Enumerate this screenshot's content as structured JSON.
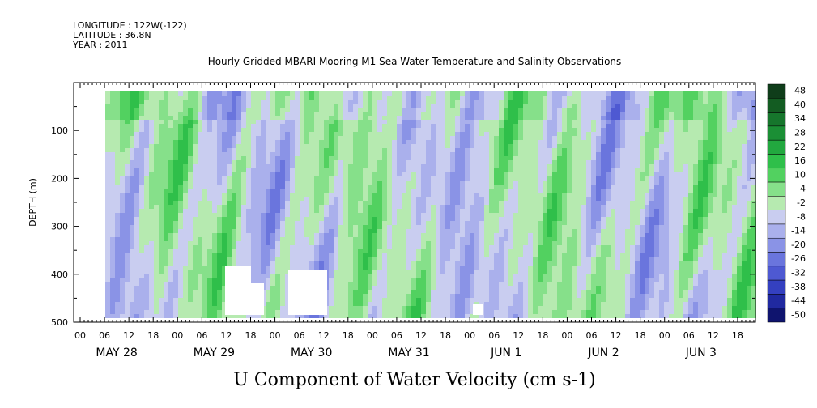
{
  "header": {
    "longitude": "LONGITUDE : 122W(-122)",
    "latitude": "LATITUDE : 36.8N",
    "year": "YEAR : 2011"
  },
  "chart_data": {
    "type": "heatmap",
    "title": "Hourly Gridded MBARI Mooring M1 Sea Water Temperature and Salinity Observations",
    "variable_label": "U Component of Water Velocity (cm s-1)",
    "ylabel": "DEPTH (m)",
    "ylim": [
      500,
      0
    ],
    "y_inverted": true,
    "y_ticks": [
      100,
      200,
      300,
      400,
      500
    ],
    "x_hour_ticks": [
      "00",
      "06",
      "12",
      "18",
      "00",
      "06",
      "12",
      "18",
      "00",
      "06",
      "12",
      "18",
      "00",
      "06",
      "12",
      "18",
      "00",
      "06",
      "12",
      "18",
      "00",
      "06",
      "12",
      "18",
      "00",
      "06",
      "12",
      "18"
    ],
    "x_day_labels": [
      "MAY 28",
      "MAY 29",
      "MAY 30",
      "MAY 31",
      "JUN  1",
      "JUN  2",
      "JUN  3"
    ],
    "colorbar": {
      "levels": [
        48,
        40,
        34,
        28,
        22,
        16,
        10,
        4,
        -2,
        -8,
        -14,
        -20,
        -26,
        -32,
        -38,
        -44,
        -50
      ],
      "labels": [
        "48",
        "40",
        "34",
        "28",
        "22",
        "16",
        "10",
        "4",
        "-2",
        "-8",
        "-14",
        "-20",
        "-26",
        "-32",
        "-38",
        "-44",
        "-50"
      ],
      "colors": [
        "#0f3d1a",
        "#135c22",
        "#16762c",
        "#1b8f35",
        "#22a83f",
        "#2fbf4a",
        "#52d160",
        "#86e08a",
        "#b6eab0",
        "#c9cdf0",
        "#aab0ec",
        "#8a93e6",
        "#6a75dd",
        "#4e59d2",
        "#3440c0",
        "#2029a0",
        "#0f146e"
      ]
    },
    "note": "Hourly gridded U-velocity section, 0-500 m depth, May 28 - Jun 3 2011; values mostly between -14 and +22 cm/s"
  }
}
